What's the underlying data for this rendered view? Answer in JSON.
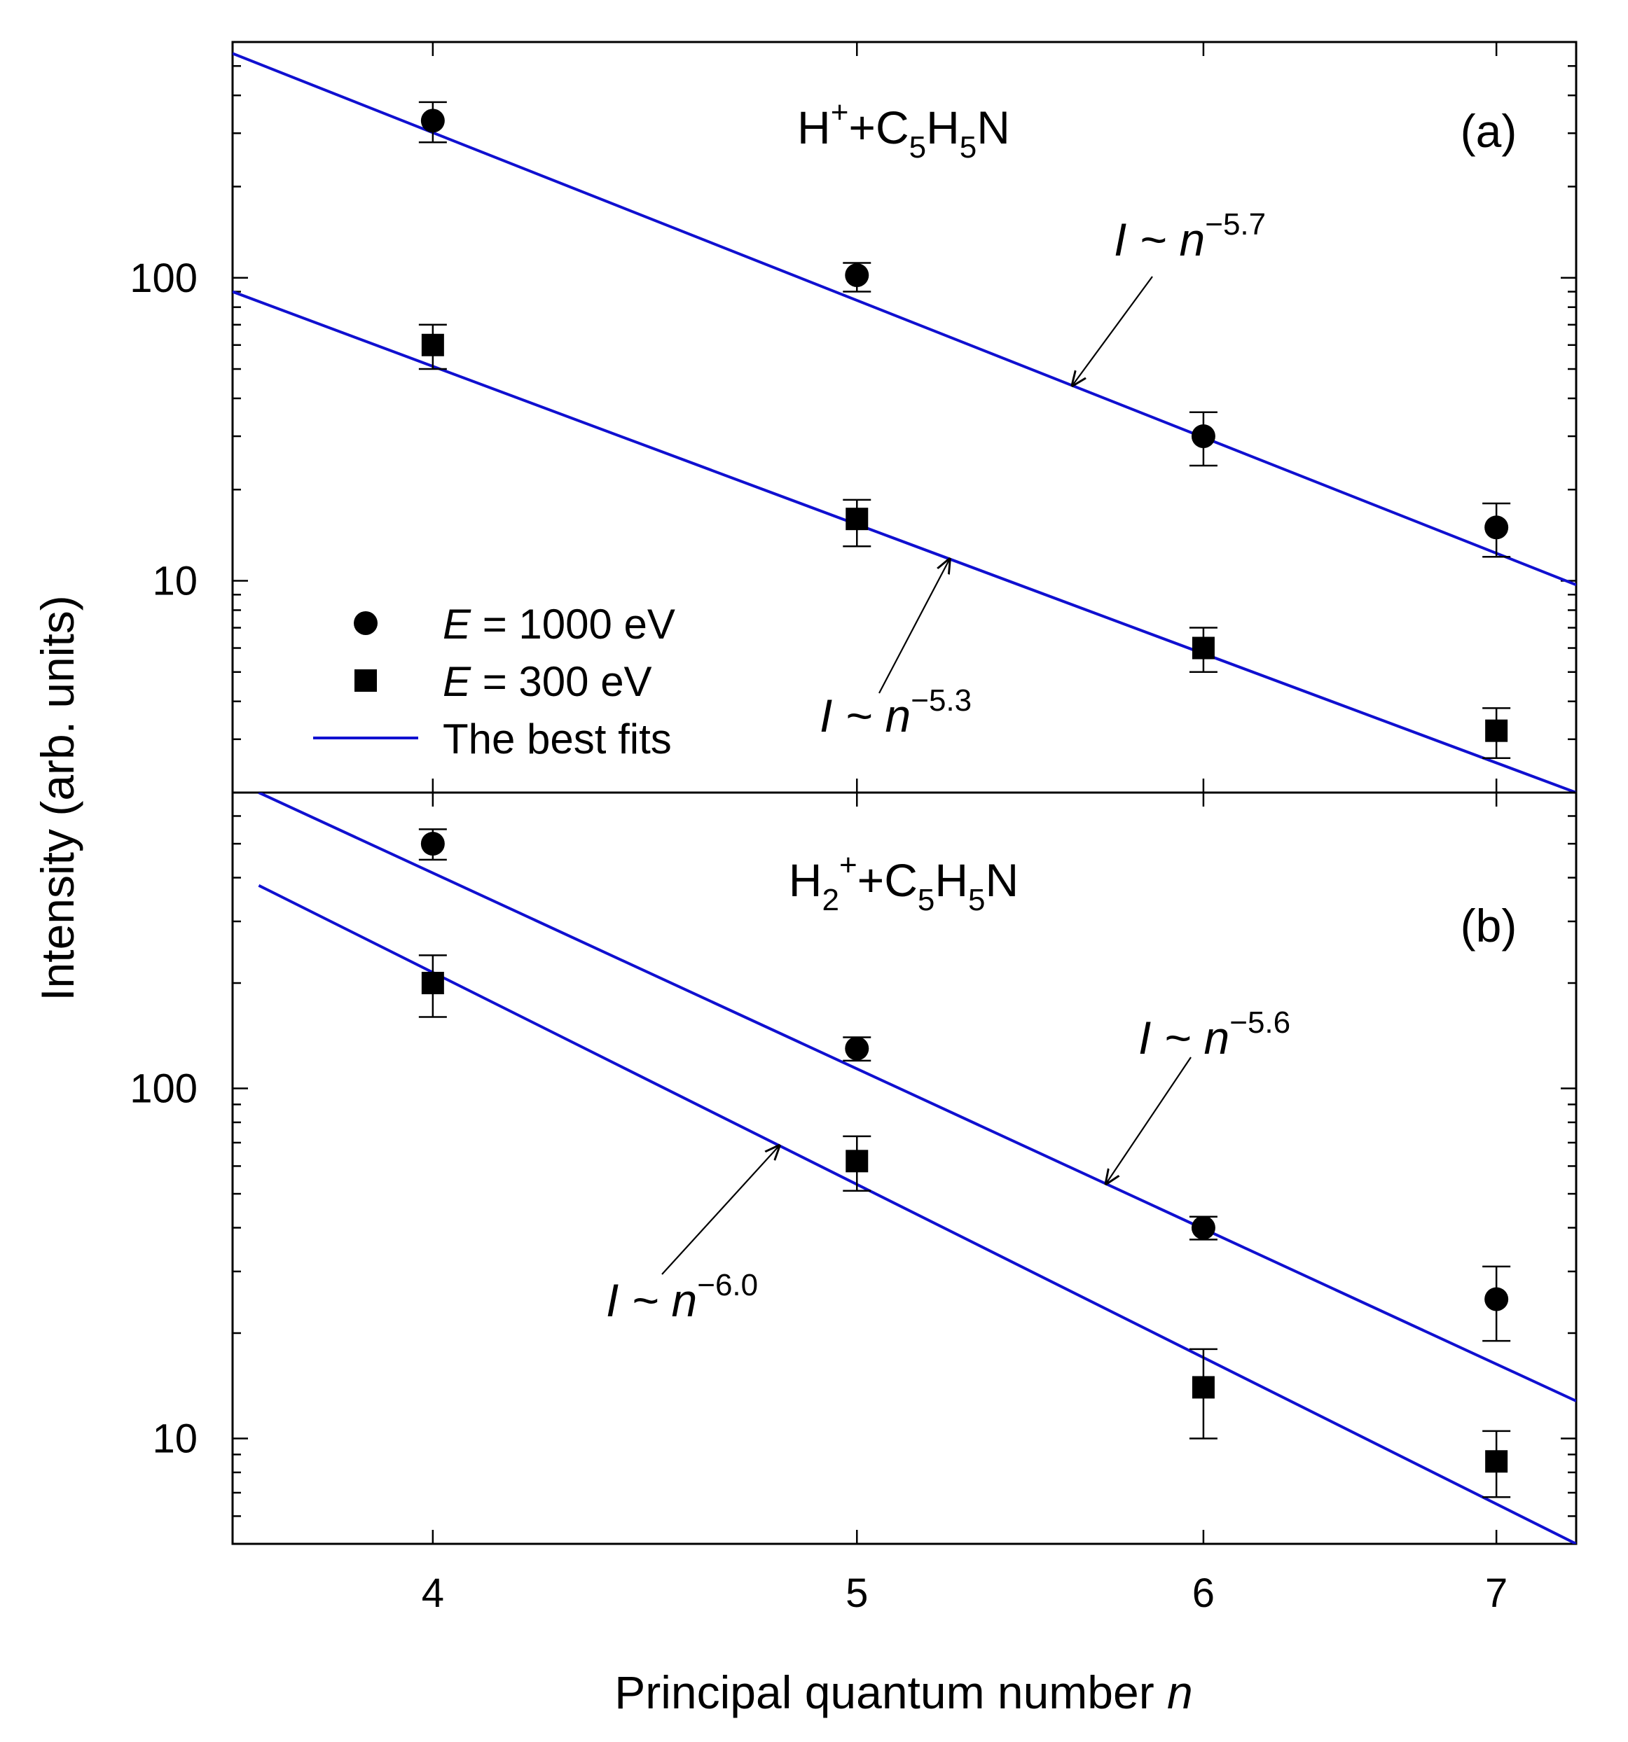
{
  "chart_data": [
    {
      "panel": "(a)",
      "type": "scatter",
      "title": "H⁺+C₅H₅N",
      "title_parts": [
        {
          "t": "H",
          "s": "n"
        },
        {
          "t": "+",
          "s": "sup"
        },
        {
          "t": "+C",
          "s": "n"
        },
        {
          "t": "5",
          "s": "sub"
        },
        {
          "t": "H",
          "s": "n"
        },
        {
          "t": "5",
          "s": "sub"
        },
        {
          "t": "N",
          "s": "n"
        }
      ],
      "xlabel": "Principal quantum number n",
      "ylabel": "Intensity (arb. units)",
      "xscale": "log",
      "yscale": "log",
      "xlim": [
        3.6,
        7.3
      ],
      "ylim": [
        2,
        600
      ],
      "yticks": [
        {
          "value": 10,
          "label": "10"
        },
        {
          "value": 100,
          "label": "100"
        }
      ],
      "series": [
        {
          "name": "E = 1000 eV",
          "marker": "circle",
          "x": [
            4,
            5,
            6,
            7
          ],
          "y": [
            330,
            102,
            30,
            15
          ],
          "err_lo": [
            280,
            90,
            24,
            12
          ],
          "err_hi": [
            380,
            112,
            36,
            18
          ]
        },
        {
          "name": "E = 300 eV",
          "marker": "square",
          "x": [
            4,
            5,
            6,
            7
          ],
          "y": [
            60,
            16,
            6,
            3.2
          ],
          "err_lo": [
            50,
            13,
            5,
            2.6
          ],
          "err_hi": [
            70,
            18.5,
            7,
            3.8
          ]
        }
      ],
      "fits": [
        {
          "label": "fit-1000eV",
          "exponent": -5.7,
          "points": [
            [
              3.6,
              550
            ],
            [
              7.3,
              9.7
            ]
          ],
          "color": "#1010d0"
        },
        {
          "label": "fit-300eV",
          "exponent": -5.3,
          "points": [
            [
              3.6,
              90
            ],
            [
              7.3,
              2.0
            ]
          ],
          "color": "#1010d0"
        }
      ],
      "annotations": [
        {
          "base": "I ~ n",
          "exp": "−5.7",
          "arrow_to_x": 5.6,
          "arrow_to_line": 0
        },
        {
          "base": "I ~ n",
          "exp": "−5.3",
          "arrow_to_x": 5.25,
          "arrow_to_line": 1
        }
      ],
      "legend": {
        "placement": "lower-left",
        "entries": [
          {
            "marker": "circle",
            "italic": "E",
            "text": " = 1000 eV"
          },
          {
            "marker": "square",
            "italic": "E",
            "text": " = 300 eV"
          },
          {
            "marker": "line",
            "italic": "",
            "text": "The best fits"
          }
        ]
      }
    },
    {
      "panel": "(b)",
      "type": "scatter",
      "title": "H₂⁺+C₅H₅N",
      "title_parts": [
        {
          "t": "H",
          "s": "n"
        },
        {
          "t": "2",
          "s": "sub"
        },
        {
          "t": "+",
          "s": "sup"
        },
        {
          "t": "+C",
          "s": "n"
        },
        {
          "t": "5",
          "s": "sub"
        },
        {
          "t": "H",
          "s": "n"
        },
        {
          "t": "5",
          "s": "sub"
        },
        {
          "t": "N",
          "s": "n"
        }
      ],
      "xlabel": "Principal quantum number n",
      "ylabel": "Intensity (arb. units)",
      "xscale": "log",
      "yscale": "log",
      "xlim": [
        3.6,
        7.3
      ],
      "ylim": [
        5,
        700
      ],
      "xticks": [
        4,
        5,
        6,
        7
      ],
      "yticks": [
        {
          "value": 10,
          "label": "10"
        },
        {
          "value": 100,
          "label": "100"
        }
      ],
      "series": [
        {
          "name": "E = 1000 eV",
          "marker": "circle",
          "x": [
            4,
            5,
            6,
            7
          ],
          "y": [
            500,
            130,
            40,
            25
          ],
          "err_lo": [
            450,
            120,
            37,
            19
          ],
          "err_hi": [
            550,
            140,
            43,
            31
          ]
        },
        {
          "name": "E = 300 eV",
          "marker": "square",
          "x": [
            4,
            5,
            6,
            7
          ],
          "y": [
            200,
            62,
            14,
            8.6
          ],
          "err_lo": [
            160,
            51,
            10,
            6.8
          ],
          "err_hi": [
            240,
            73,
            18,
            10.5
          ]
        }
      ],
      "fits": [
        {
          "label": "fit-1000eV",
          "exponent": -5.6,
          "points": [
            [
              3.65,
              700
            ],
            [
              7.3,
              12.8
            ]
          ],
          "color": "#1010d0"
        },
        {
          "label": "fit-300eV",
          "exponent": -6.0,
          "points": [
            [
              3.65,
              380
            ],
            [
              7.3,
              5.0
            ]
          ],
          "color": "#1010d0"
        }
      ],
      "annotations": [
        {
          "base": "I ~ n",
          "exp": "−5.6",
          "arrow_to_x": 5.7,
          "arrow_to_line": 0
        },
        {
          "base": "I ~ n",
          "exp": "−6.0",
          "arrow_to_x": 4.8,
          "arrow_to_line": 1
        }
      ]
    }
  ]
}
